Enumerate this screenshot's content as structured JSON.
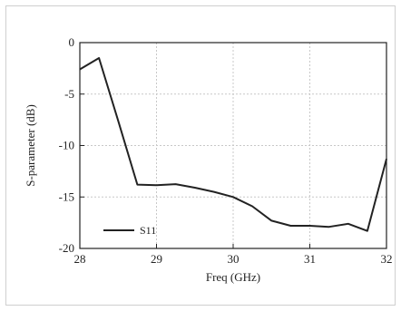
{
  "chart_data": {
    "type": "line",
    "title": "",
    "xlabel": "Freq (GHz)",
    "ylabel": "S-parameter (dB)",
    "xlim": [
      28,
      32
    ],
    "ylim": [
      -20,
      0
    ],
    "xticks": [
      28,
      29,
      30,
      31,
      32
    ],
    "yticks": [
      0,
      -5,
      -10,
      -15,
      -20
    ],
    "grid": true,
    "legend": "bottom-left",
    "series": [
      {
        "name": "S11",
        "color": "#222222",
        "x": [
          28.0,
          28.25,
          28.5,
          28.75,
          29.0,
          29.25,
          29.5,
          29.75,
          30.0,
          30.25,
          30.5,
          30.75,
          31.0,
          31.25,
          31.5,
          31.75,
          32.0
        ],
        "y": [
          -2.6,
          -1.5,
          -7.6,
          -13.8,
          -13.85,
          -13.75,
          -14.1,
          -14.5,
          -15.0,
          -15.9,
          -17.3,
          -17.8,
          -17.8,
          -17.9,
          -17.6,
          -18.3,
          -11.3
        ]
      }
    ]
  }
}
